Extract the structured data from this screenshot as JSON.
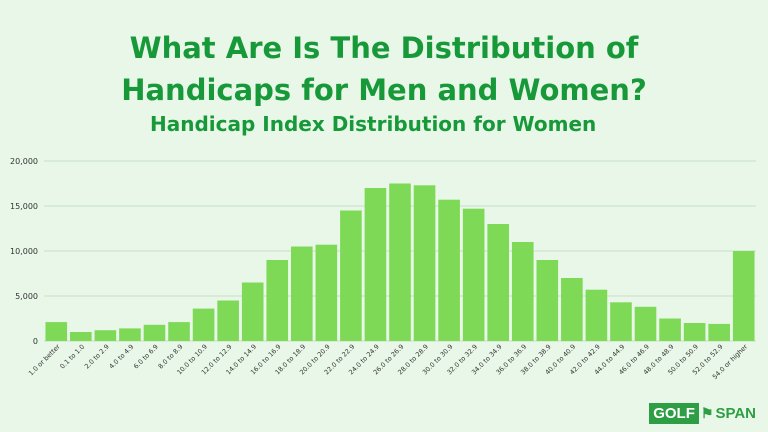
{
  "page": {
    "title_line1": "What Are Is The Distribution of",
    "title_line2": "Handicaps for Men and Women?",
    "subtitle": "Handicap Index Distribution for Women"
  },
  "logo": {
    "part1": "GOLF",
    "flag": "⚑",
    "part2": "SPAN"
  },
  "chart_data": {
    "type": "bar",
    "title": "Handicap Index Distribution for Women",
    "xlabel": "",
    "ylabel": "",
    "ylim": [
      0,
      20000
    ],
    "yticks": [
      0,
      5000,
      10000,
      15000,
      20000
    ],
    "ytick_labels": [
      "0",
      "5,000",
      "10,000",
      "15,000",
      "20,000"
    ],
    "grid": true,
    "bar_color": "#7ed957",
    "categories": [
      "1.0 or better",
      "0.1 to 1.0",
      "2.0 to 2.9",
      "4.0 to 4.9",
      "6.0 to 6.9",
      "8.0 to 8.9",
      "10.0 to 10.9",
      "12.0 to 12.9",
      "14.0 to 14.9",
      "16.0 to 16.9",
      "18.0 to 18.9",
      "20.0 to 20.9",
      "22.0 to 22.9",
      "24.0 to 24.9",
      "26.0 to 26.9",
      "28.0 to 28.9",
      "30.0 to 30.9",
      "32.0 to 32.9",
      "34.0 to 34.9",
      "36.0 to 36.9",
      "38.0 to 38.9",
      "40.0 to 40.9",
      "42.0 to 42.9",
      "44.0 to 44.9",
      "46.0 to 46.9",
      "48.0 to 48.9",
      "50.0 to 50.9",
      "52.0 to 52.9",
      "54.0 or higher"
    ],
    "values": [
      2100,
      1000,
      1200,
      1400,
      1800,
      2100,
      3600,
      4500,
      6500,
      9000,
      10500,
      10700,
      14500,
      17000,
      17500,
      17300,
      15700,
      14700,
      13000,
      11000,
      9000,
      7000,
      5700,
      4300,
      3800,
      2500,
      2000,
      1900,
      10000
    ]
  }
}
